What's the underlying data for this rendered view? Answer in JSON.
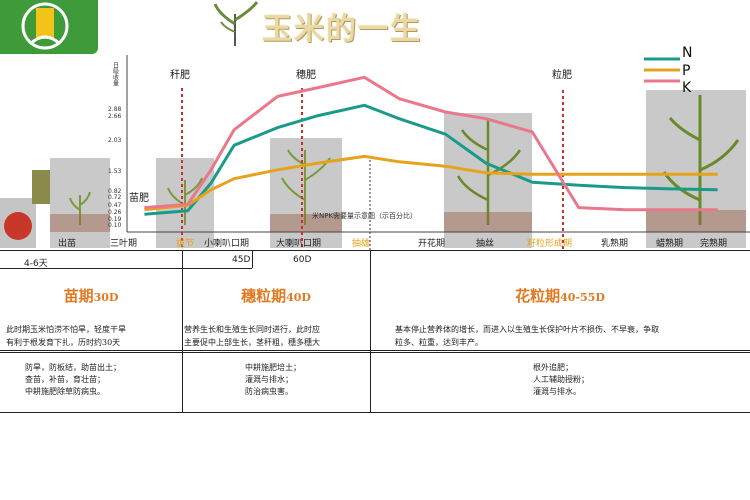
{
  "header": {
    "title": "玉米的一生"
  },
  "chart_data": {
    "type": "line",
    "title": "",
    "ylabel": "日吸收量",
    "y_ticks": [
      "0.10",
      "0.19",
      "0.26",
      "0.47",
      "0.72",
      "0.82",
      "1.53",
      "2.03",
      "2.66",
      "2.88"
    ],
    "note": "米NPK需要量示意图（示百分比）",
    "legend": [
      "N",
      "P",
      "K"
    ],
    "series_colors": [
      "#1a9b8a",
      "#e6a21c",
      "#e8788a"
    ],
    "fert_labels": [
      "苗肥",
      "秆肥",
      "穗肥",
      "粒肥"
    ],
    "stages": [
      "出苗",
      "三叶期",
      "拔节",
      "小喇叭口期",
      "大喇叭口期",
      "抽雄",
      "开花期",
      "抽丝",
      "籽粒形成期",
      "乳熟期",
      "蜡熟期",
      "完熟期"
    ],
    "x": [
      0.3,
      1.05,
      1.45,
      1.85,
      2.6,
      3.3,
      4.1,
      4.7,
      5.5,
      6.2,
      7.0,
      7.8,
      8.6,
      9.4,
      10.2
    ],
    "series": [
      {
        "name": "N",
        "values": [
          0.4,
          0.48,
          1.1,
          1.95,
          2.35,
          2.62,
          2.85,
          2.55,
          2.2,
          1.55,
          1.12,
          1.05,
          1.0,
          0.97,
          0.95
        ]
      },
      {
        "name": "P",
        "values": [
          0.5,
          0.6,
          0.95,
          1.2,
          1.4,
          1.55,
          1.7,
          1.58,
          1.48,
          1.33,
          1.3,
          1.3,
          1.3,
          1.3,
          1.3
        ]
      },
      {
        "name": "K",
        "values": [
          0.55,
          0.62,
          1.4,
          2.3,
          3.05,
          3.25,
          3.48,
          3.0,
          2.7,
          2.55,
          2.25,
          0.55,
          0.5,
          0.5,
          0.5
        ]
      }
    ]
  },
  "timeline": {
    "d1": "4-6天",
    "d2": "45D",
    "d3": "60D"
  },
  "periods": [
    {
      "name": "苗期",
      "days": "30D",
      "desc": [
        "此时期玉米怕涝不怕旱，轻度干旱",
        "有利于根发育下扎，历时约30天"
      ],
      "measures": [
        "防旱，防板结，助苗出土；",
        "查苗，补苗，育壮苗；",
        "中耕施肥除草防病虫。"
      ]
    },
    {
      "name": "穗粒期",
      "days": "40D",
      "desc": [
        "营养生长和生殖生长同时进行，此时应",
        "主要促中上部生长，茎秆粗，穗多穗大"
      ],
      "measures": [
        "中耕施肥培土；",
        "灌溉与排水；",
        "防治病虫害。"
      ]
    },
    {
      "name": "花粒期",
      "days": "40-55D",
      "desc": [
        "基本停止营养体的增长，而进入以生殖生长保护叶片不损伤、不早衰，争取",
        "粒多、粒重，达到丰产。"
      ],
      "measures": [
        "根外追肥；",
        "人工辅助授粉；",
        "灌溉与排水。"
      ]
    }
  ]
}
